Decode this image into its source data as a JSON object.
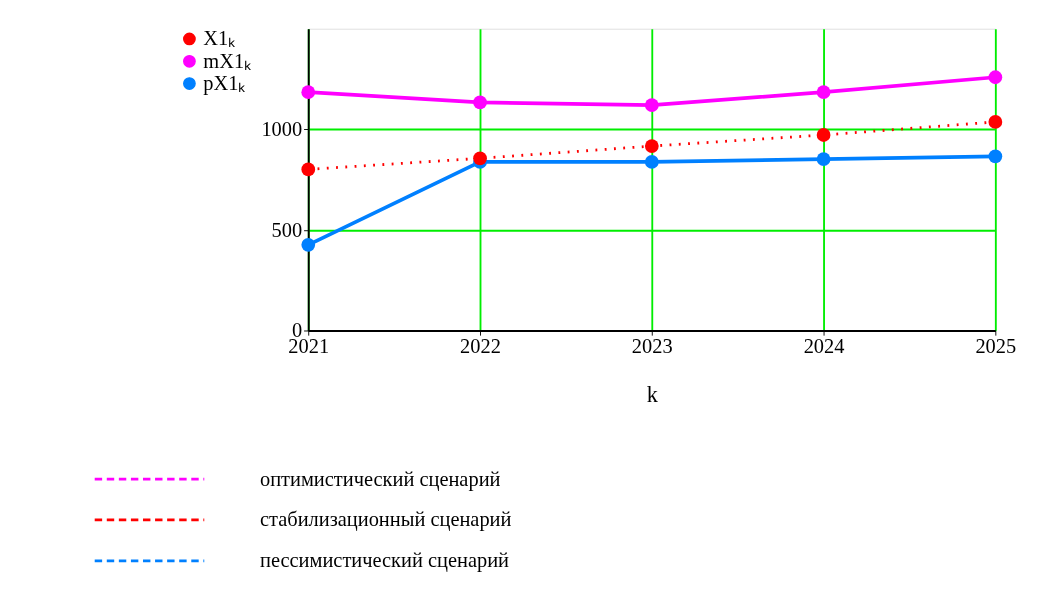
{
  "chart_data": {
    "type": "line",
    "xlabel": "k",
    "x": [
      2021,
      2022,
      2023,
      2024,
      2025
    ],
    "series": [
      {
        "name": "X1ₖ",
        "color": "#ff0000",
        "values": [
          801,
          856,
          917,
          972,
          1037
        ],
        "line_style": "dotted"
      },
      {
        "name": "mX1ₖ",
        "color": "#ff00ff",
        "values": [
          1185,
          1134,
          1120,
          1185,
          1259
        ],
        "line_style": "solid"
      },
      {
        "name": "pX1ₖ",
        "color": "#0080ff",
        "values": [
          426,
          838,
          838,
          852,
          866
        ],
        "line_style": "solid"
      }
    ],
    "xlim": [
      2021,
      2025
    ],
    "xticks": [
      2021,
      2022,
      2023,
      2024,
      2025
    ],
    "ylim": [
      0,
      1500
    ],
    "yticks": [
      0,
      500,
      1000
    ],
    "grid": true,
    "legend": "left",
    "marker": "circle",
    "annotations": [
      "оптимистический сценарий",
      "стабилизационный  сценарий",
      "пессимистический сценарий"
    ]
  }
}
